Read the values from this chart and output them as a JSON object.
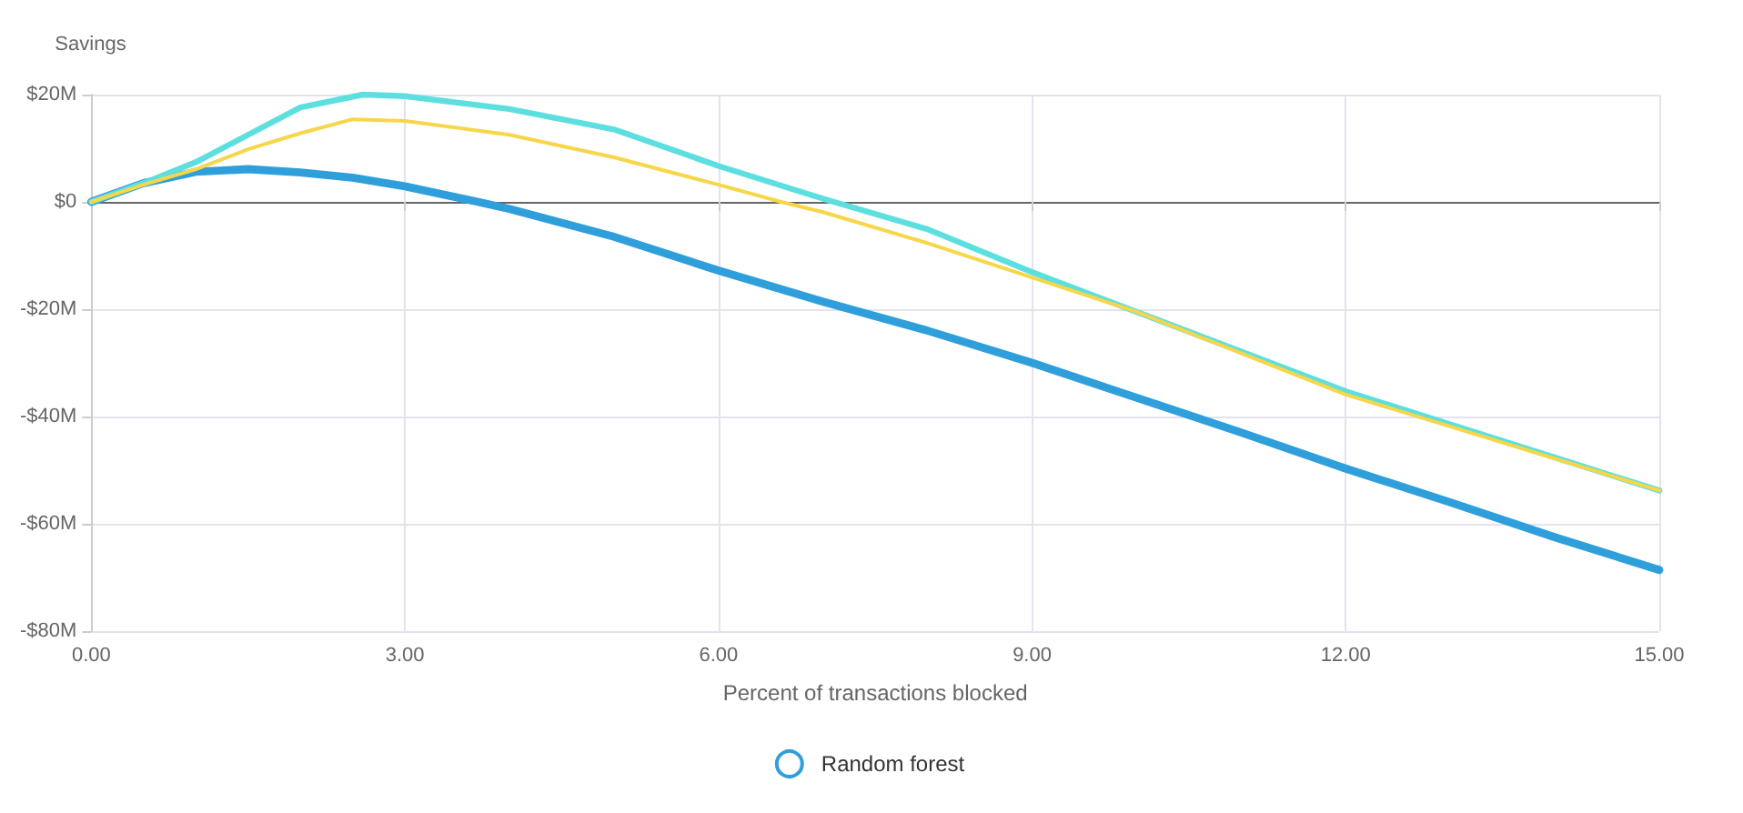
{
  "chart_data": {
    "type": "line",
    "ylabel": "Savings",
    "xlabel": "Percent of transactions blocked",
    "grid": true,
    "legend": "bottom",
    "marker": "none",
    "line_style": "solid",
    "xlim": [
      0,
      15
    ],
    "xticks": [
      {
        "value": 0,
        "label": "0.00"
      },
      {
        "value": 3,
        "label": "3.00"
      },
      {
        "value": 6,
        "label": "6.00"
      },
      {
        "value": 9,
        "label": "9.00"
      },
      {
        "value": 12,
        "label": "12.00"
      },
      {
        "value": 15,
        "label": "15.00"
      }
    ],
    "ylim": [
      -80,
      20
    ],
    "yticks": [
      {
        "value": -80,
        "label": "-$80M"
      },
      {
        "value": -60,
        "label": "-$60M"
      },
      {
        "value": -40,
        "label": "-$40M"
      },
      {
        "value": -20,
        "label": "-$20M"
      },
      {
        "value": 0,
        "label": "$0"
      },
      {
        "value": 20,
        "label": "$20M"
      }
    ],
    "series": [
      {
        "name": "Random forest",
        "color": "#2f9fdc",
        "x": [
          0,
          0.5,
          1,
          1.5,
          2,
          2.5,
          3,
          3.7,
          4,
          5,
          6,
          7,
          8,
          9,
          10,
          11,
          12,
          13,
          14,
          15
        ],
        "values": [
          0,
          3.5,
          5.6,
          6.1,
          5.5,
          4.5,
          2.9,
          0,
          -1.3,
          -6.5,
          -12.8,
          -18.6,
          -24,
          -30,
          -36.5,
          -43,
          -49.7,
          -56,
          -62.5,
          -68.6
        ]
      },
      {
        "color": "#5ddfe0",
        "x": [
          0,
          0.5,
          1,
          1.5,
          2,
          2.6,
          3,
          4,
          5,
          6,
          7,
          8,
          9,
          10,
          12,
          15
        ],
        "values": [
          0,
          3.5,
          7.4,
          12.5,
          17.6,
          20,
          19.7,
          17.3,
          13.5,
          6.7,
          0.6,
          -5.1,
          -13.1,
          -20.5,
          -35.3,
          -53.8
        ]
      },
      {
        "color": "#f7d64a",
        "x": [
          0,
          0.5,
          1,
          1.5,
          2,
          2.5,
          3,
          4,
          5,
          6,
          6.6,
          7,
          8,
          9,
          10,
          12,
          15
        ],
        "values": [
          0,
          3.2,
          6.1,
          9.8,
          12.8,
          15.4,
          15.1,
          12.5,
          8.3,
          3.2,
          0,
          -1.9,
          -7.7,
          -14.1,
          -20.5,
          -35.9,
          -53.8
        ]
      }
    ]
  }
}
